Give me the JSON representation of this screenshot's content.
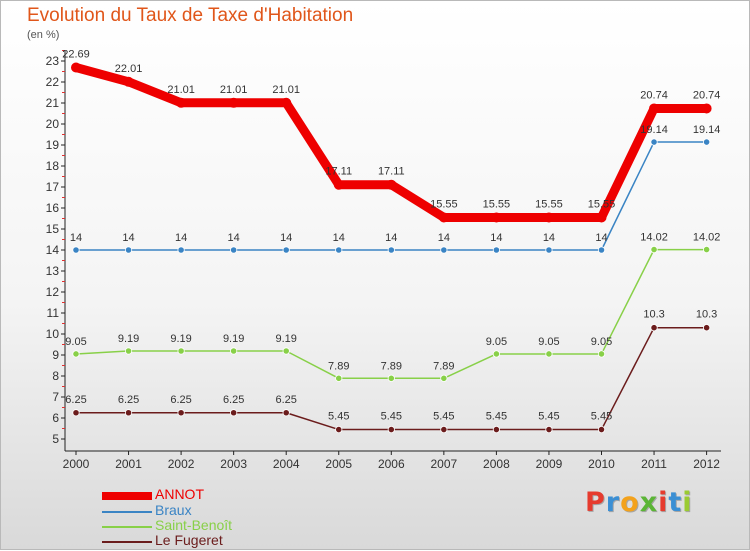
{
  "chart_data": {
    "type": "line",
    "title": "Evolution du Taux de Taxe d'Habitation",
    "subtitle": "(en %)",
    "x": [
      "2000",
      "2001",
      "2002",
      "2003",
      "2004",
      "2005",
      "2006",
      "2007",
      "2008",
      "2009",
      "2010",
      "2011",
      "2012"
    ],
    "ylim": [
      5,
      23
    ],
    "yticks": [
      5,
      6,
      7,
      8,
      9,
      10,
      11,
      12,
      13,
      14,
      15,
      16,
      17,
      18,
      19,
      20,
      21,
      22,
      23
    ],
    "grid": false,
    "legend": "bottom-left",
    "series": [
      {
        "name": "ANNOT",
        "color": "#ee0000",
        "values": [
          22.69,
          22.01,
          21.01,
          21.01,
          21.01,
          17.11,
          17.11,
          15.55,
          15.55,
          15.55,
          15.55,
          20.74,
          20.74
        ],
        "labels": [
          "22.69",
          "22.01",
          "21.01",
          "21.01",
          "21.01",
          "17.11",
          "17.11",
          "15.55",
          "15.55",
          "15.55",
          "15.55",
          "20.74",
          "20.74"
        ]
      },
      {
        "name": "Braux",
        "color": "#3a84c4",
        "values": [
          14,
          14,
          14,
          14,
          14,
          14,
          14,
          14,
          14,
          14,
          14,
          19.14,
          19.14
        ],
        "labels": [
          "14",
          "14",
          "14",
          "14",
          "14",
          "14",
          "14",
          "14",
          "14",
          "14",
          "14",
          "19.14",
          "19.14"
        ]
      },
      {
        "name": "Saint-Benoît",
        "color": "#88d048",
        "values": [
          9.05,
          9.19,
          9.19,
          9.19,
          9.19,
          7.89,
          7.89,
          7.89,
          9.05,
          9.05,
          9.05,
          14.02,
          14.02
        ],
        "labels": [
          "9.05",
          "9.19",
          "9.19",
          "9.19",
          "9.19",
          "7.89",
          "7.89",
          "7.89",
          "9.05",
          "9.05",
          "9.05",
          "14.02",
          "14.02"
        ]
      },
      {
        "name": "Le Fugeret",
        "color": "#6b1c1c",
        "values": [
          6.25,
          6.25,
          6.25,
          6.25,
          6.25,
          5.45,
          5.45,
          5.45,
          5.45,
          5.45,
          5.45,
          10.3,
          10.3
        ],
        "labels": [
          "6.25",
          "6.25",
          "6.25",
          "6.25",
          "6.25",
          "5.45",
          "5.45",
          "5.45",
          "5.45",
          "5.45",
          "5.45",
          "10.3",
          "10.3"
        ]
      }
    ]
  },
  "brand": {
    "letters": [
      "P",
      "r",
      "o",
      "x",
      "i",
      "t",
      "i"
    ],
    "colors": [
      "#e63b2e",
      "#3b8fd4",
      "#f3a21c",
      "#5bb536",
      "#e63b2e",
      "#3b8fd4",
      "#9bcb32"
    ]
  }
}
